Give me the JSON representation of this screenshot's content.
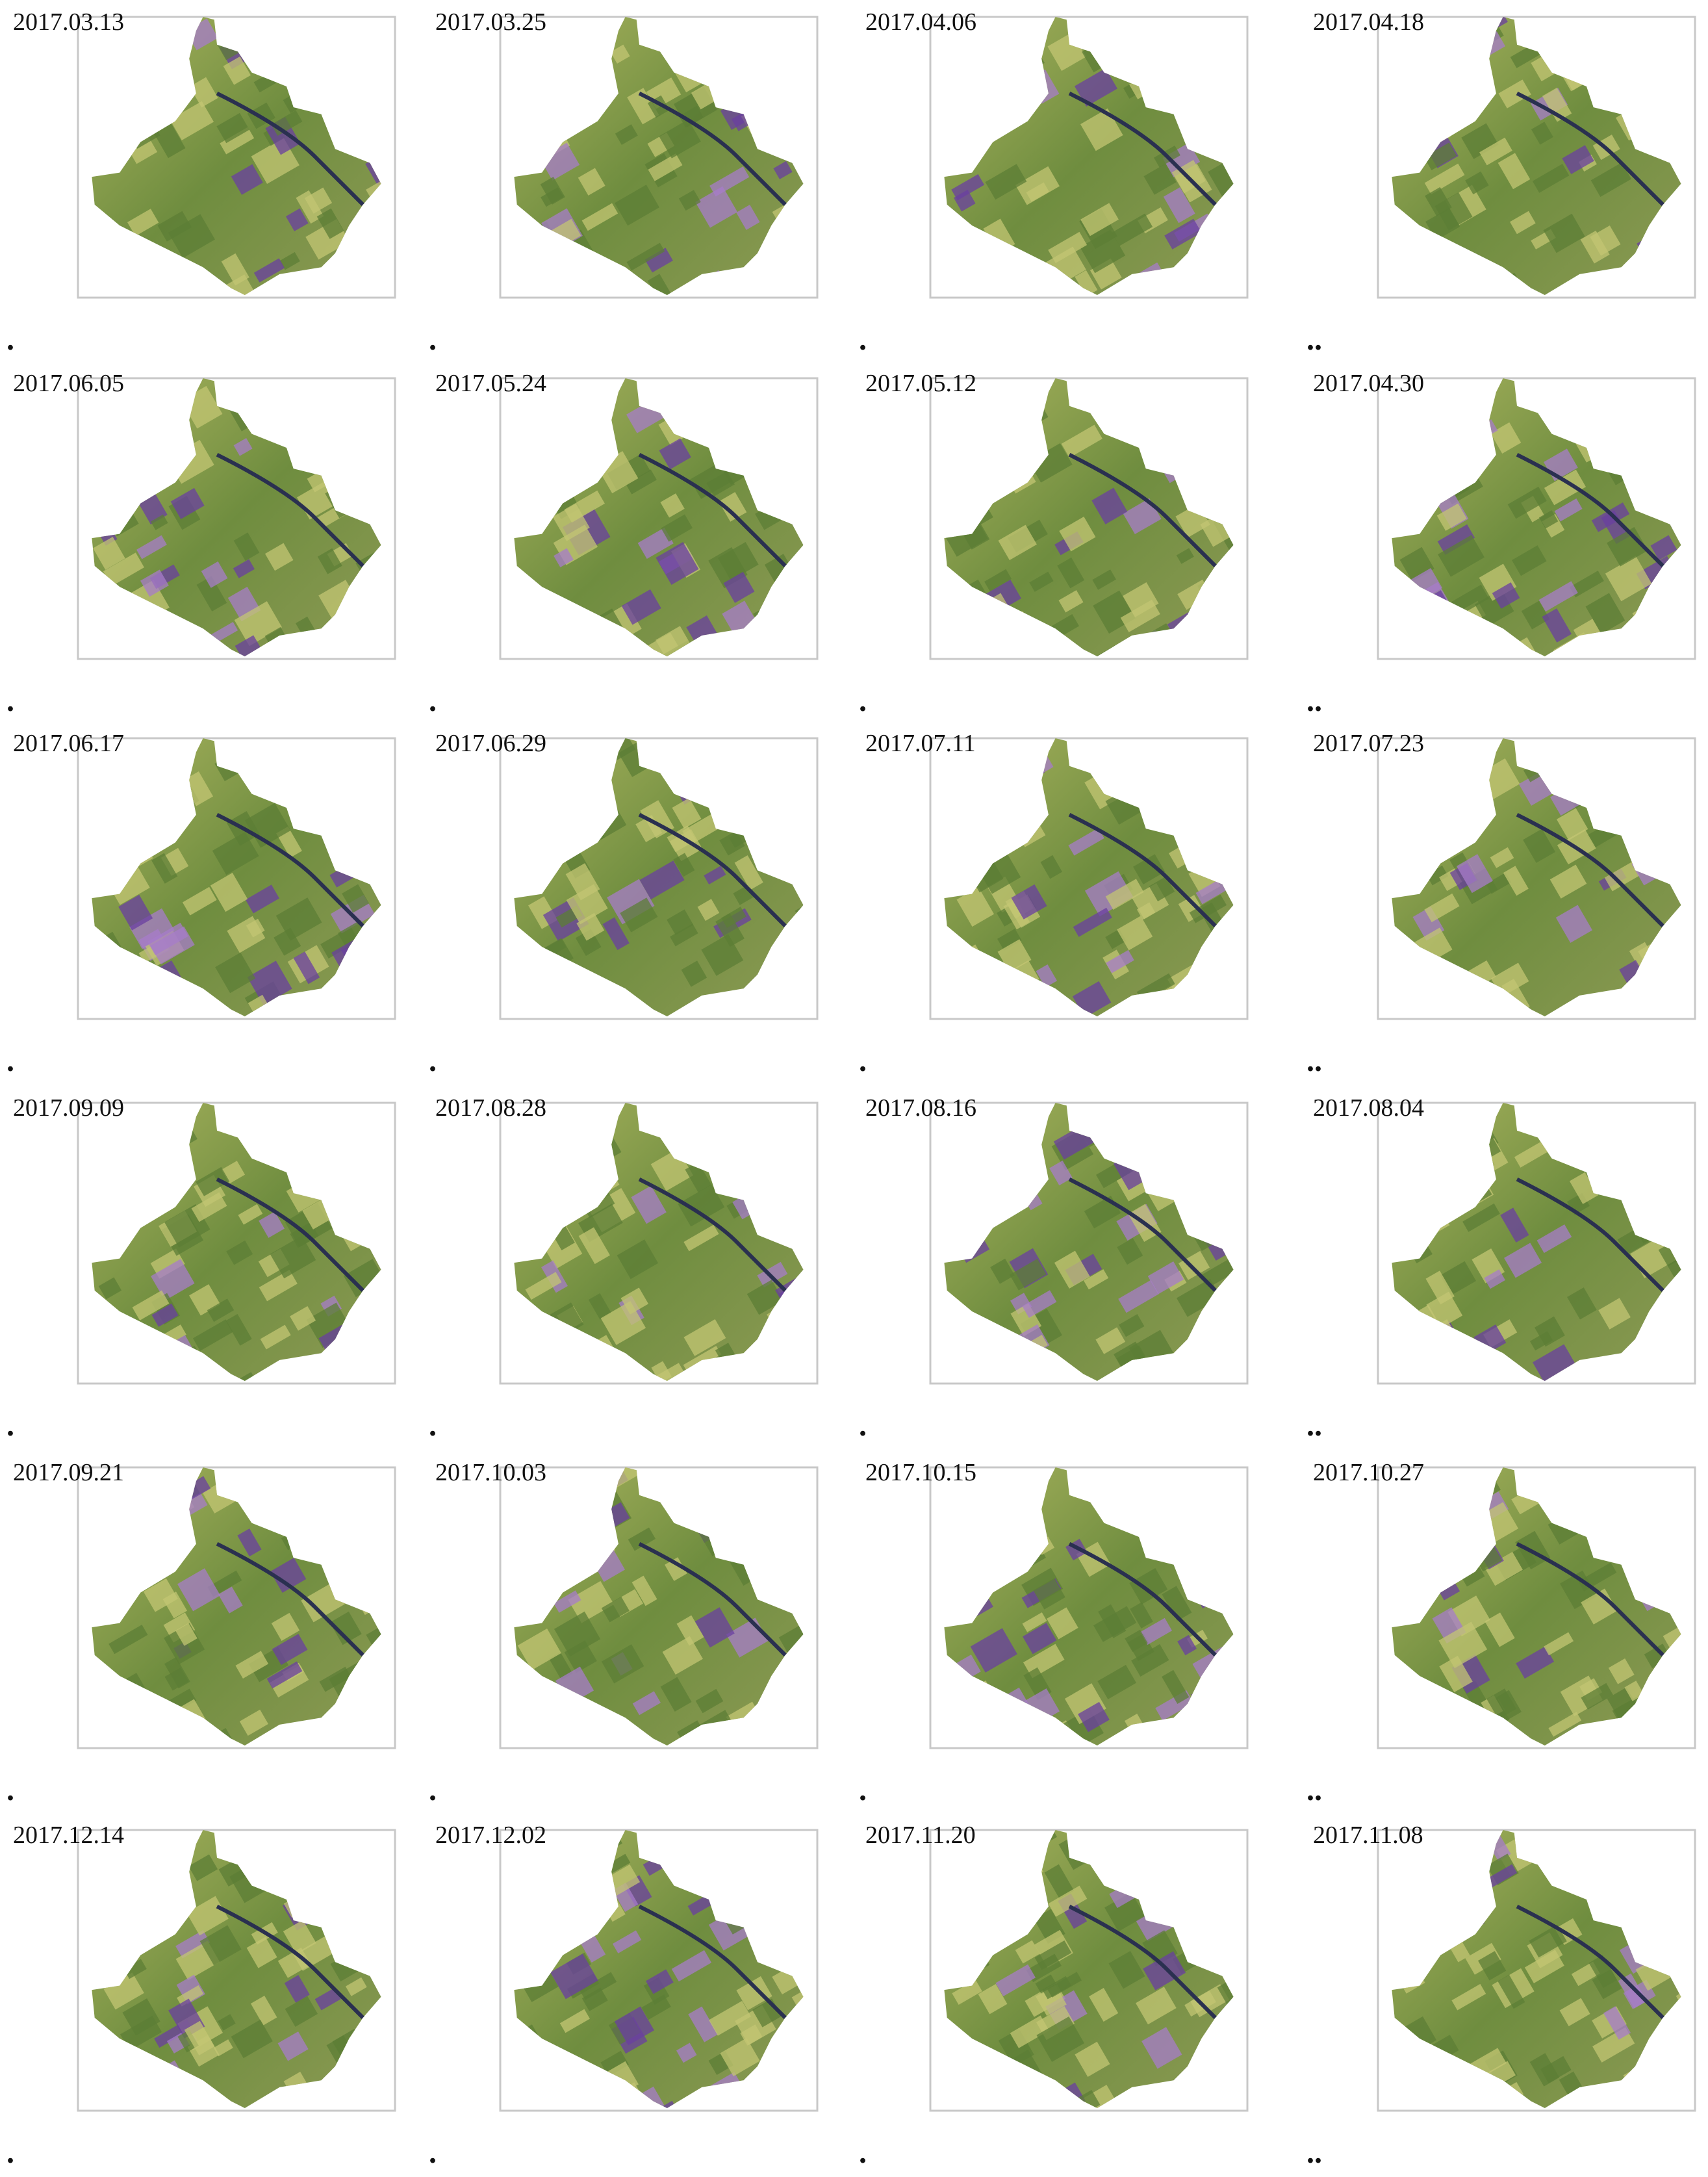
{
  "panels": [
    {
      "label": "2017.03.13",
      "dot": "."
    },
    {
      "label": "2017.03.25",
      "dot": "."
    },
    {
      "label": "2017.04.06",
      "dot": "."
    },
    {
      "label": "2017.04.18",
      "dot": ".."
    },
    {
      "label": "2017.06.05",
      "dot": "."
    },
    {
      "label": "2017.05.24",
      "dot": "."
    },
    {
      "label": "2017.05.12",
      "dot": "."
    },
    {
      "label": "2017.04.30",
      "dot": ".."
    },
    {
      "label": "2017.06.17",
      "dot": "."
    },
    {
      "label": "2017.06.29",
      "dot": "."
    },
    {
      "label": "2017.07.11",
      "dot": "."
    },
    {
      "label": "2017.07.23",
      "dot": ".."
    },
    {
      "label": "2017.09.09",
      "dot": "."
    },
    {
      "label": "2017.08.28",
      "dot": "."
    },
    {
      "label": "2017.08.16",
      "dot": "."
    },
    {
      "label": "2017.08.04",
      "dot": ".."
    },
    {
      "label": "2017.09.21",
      "dot": "."
    },
    {
      "label": "2017.10.03",
      "dot": "."
    },
    {
      "label": "2017.10.15",
      "dot": "."
    },
    {
      "label": "2017.10.27",
      "dot": ".."
    },
    {
      "label": "2017.12.14",
      "dot": "."
    },
    {
      "label": "2017.12.02",
      "dot": "."
    },
    {
      "label": "2017.11.20",
      "dot": "."
    },
    {
      "label": "2017.11.08",
      "dot": ".."
    }
  ]
}
